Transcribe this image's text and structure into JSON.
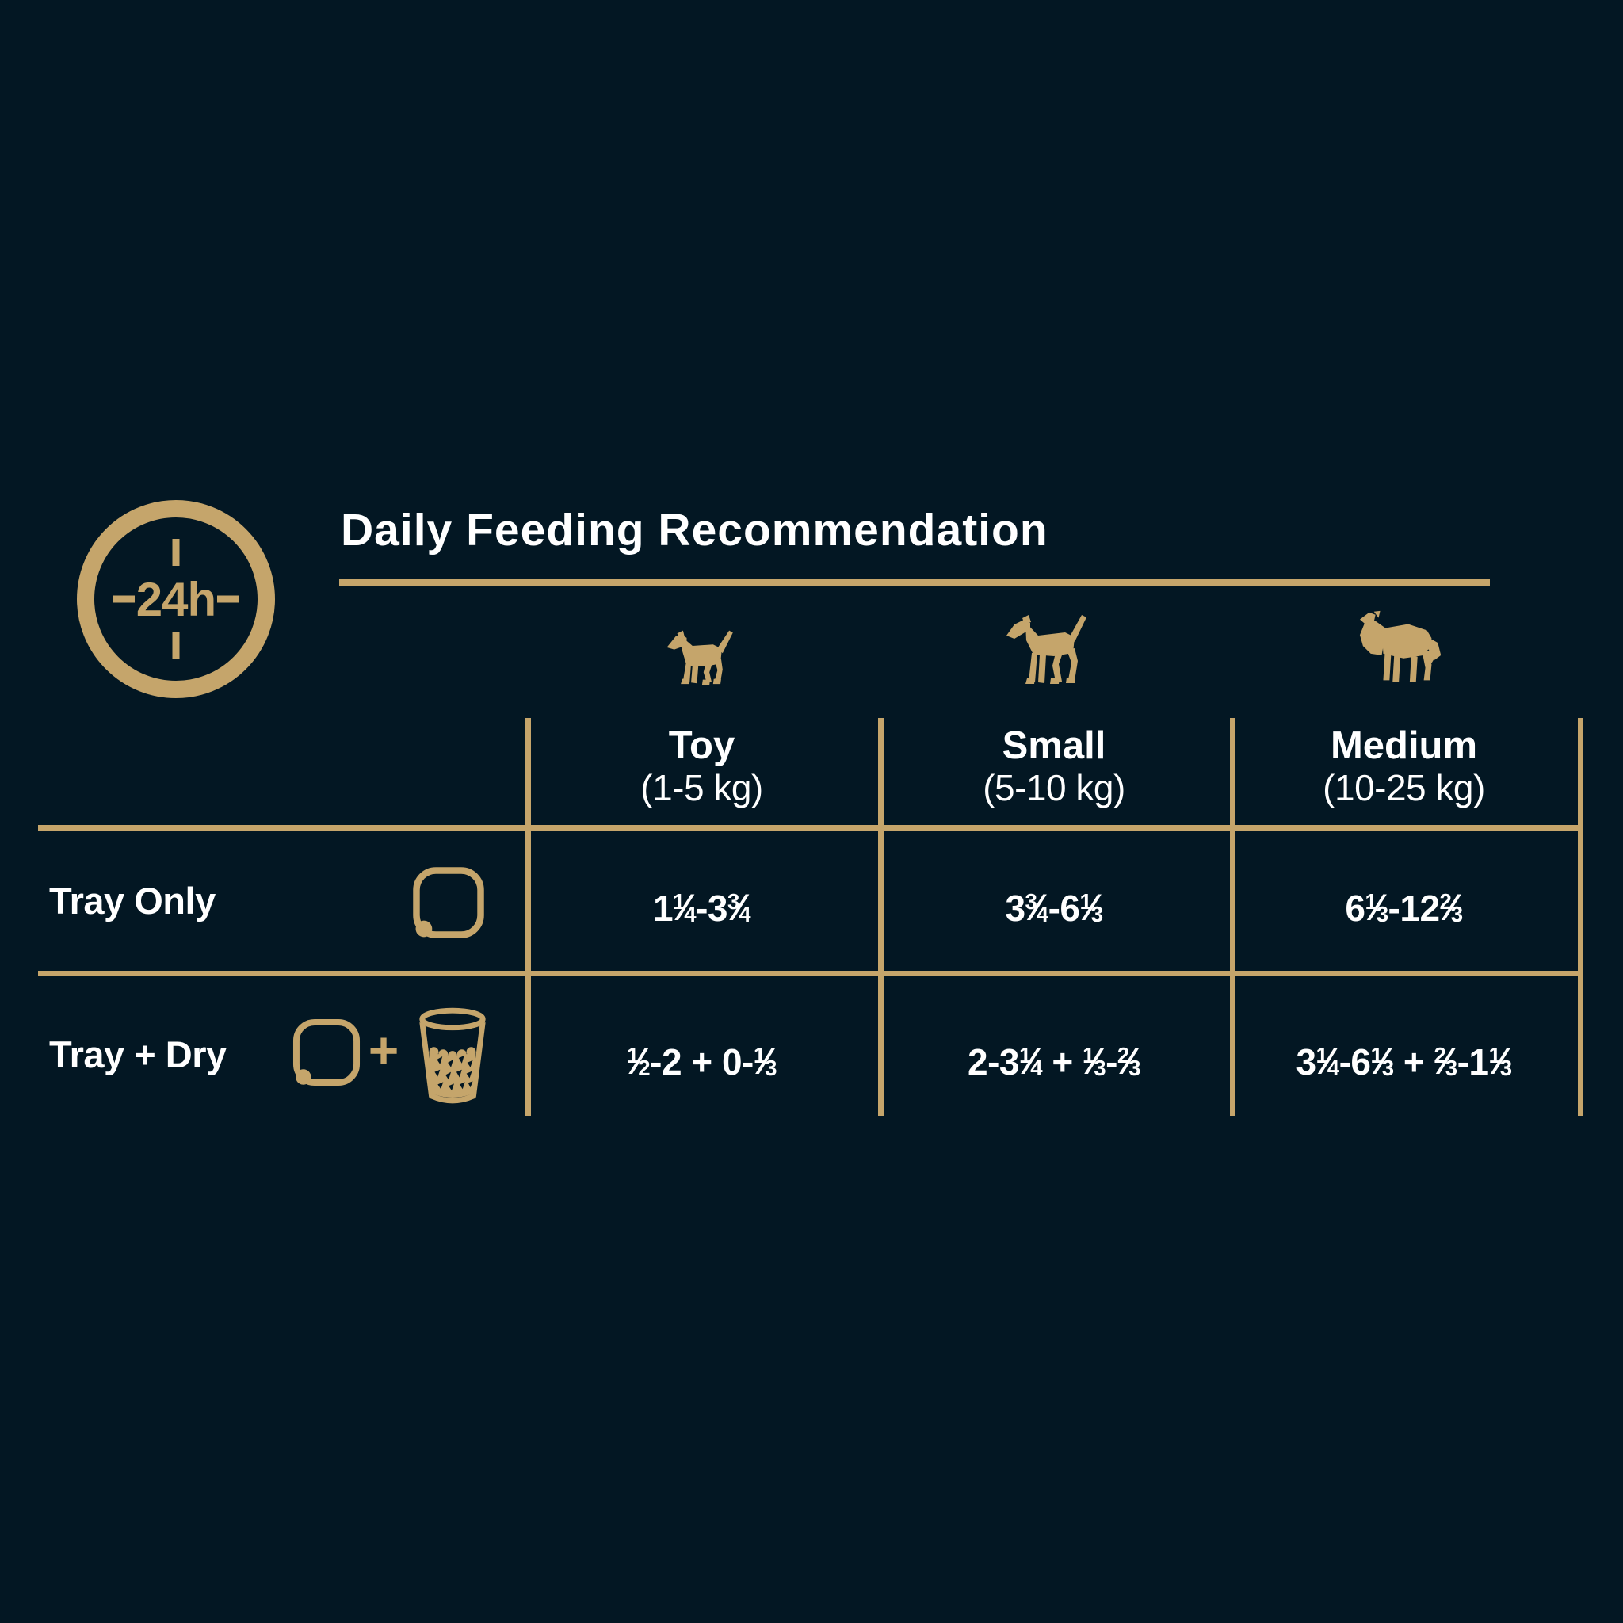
{
  "colors": {
    "background": "#031723",
    "gold": "#C5A56B",
    "text_white": "#FFFFFF"
  },
  "clock_icon": {
    "label": "24h"
  },
  "header": {
    "title": "Daily Feeding Recommendation"
  },
  "table": {
    "columns": [
      {
        "icon": "toy-dog-icon",
        "name": "Toy",
        "weight_range": "(1-5 kg)"
      },
      {
        "icon": "small-dog-icon",
        "name": "Small",
        "weight_range": "(5-10 kg)"
      },
      {
        "icon": "medium-dog-icon",
        "name": "Medium",
        "weight_range": "(10-25 kg)"
      }
    ],
    "rows": [
      {
        "label": "Tray Only",
        "icons": [
          "tray-icon"
        ],
        "values": [
          "1¼-3¾",
          "3¾-6⅓",
          "6⅓-12⅔"
        ]
      },
      {
        "label": "Tray + Dry",
        "icons": [
          "tray-icon",
          "plus-icon",
          "dry-food-cup-icon"
        ],
        "plus": "+",
        "values": [
          "½-2 + 0-⅓",
          "2-3¼ + ⅓-⅔",
          "3¼-6⅓ + ⅔-1⅓"
        ]
      }
    ]
  },
  "chart_data": {
    "type": "table",
    "title": "Daily Feeding Recommendation",
    "period": "24h",
    "columns": [
      "Toy (1-5 kg)",
      "Small (5-10 kg)",
      "Medium (10-25 kg)"
    ],
    "rows": [
      {
        "label": "Tray Only",
        "values": [
          "1¼-3¾",
          "3¾-6⅓",
          "6⅓-12⅔"
        ]
      },
      {
        "label": "Tray + Dry",
        "values": [
          "½-2 + 0-⅓",
          "2-3¼ + ⅓-⅔",
          "3¼-6⅓ + ⅔-1⅓"
        ]
      }
    ]
  }
}
